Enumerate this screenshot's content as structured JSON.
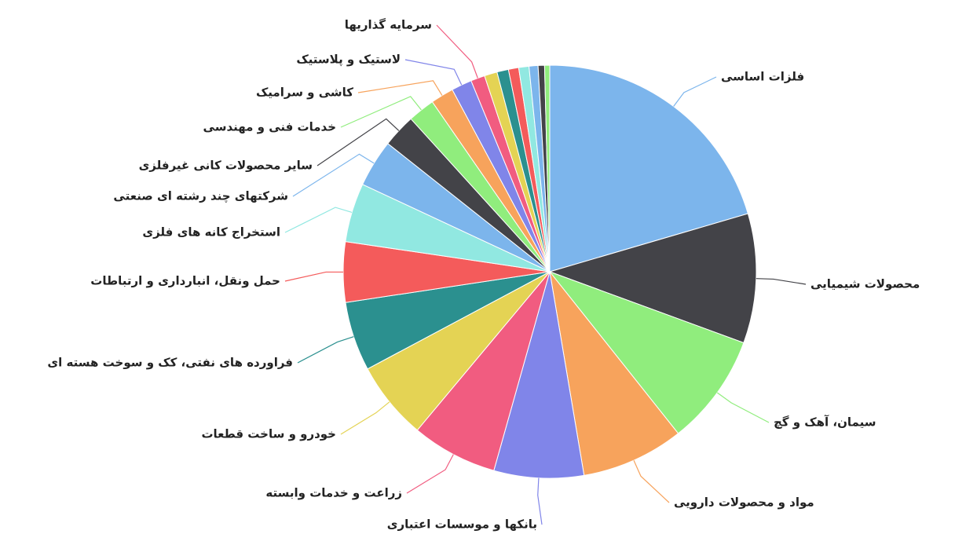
{
  "chart_data": {
    "type": "pie",
    "categories": [
      "فلزات اساسی",
      "محصولات شیمیایی",
      "سیمان، آهک و گچ",
      "مواد و محصولات دارویی",
      "بانکها و موسسات اعتباری",
      "زراعت و خدمات وابسته",
      "خودرو و ساخت قطعات",
      "فراورده های نفتی، کک و سوخت هسته ای",
      "حمل ونقل، انبارداری و ارتباطات",
      "استخراج کانه های فلزی",
      "شرکتهای چند رشته ای صنعتی",
      "سایر محصولات کانی غیرفلزی",
      "خدمات فنی و مهندسی",
      "کاشی و سرامیک",
      "لاستیک و پلاستیک",
      "سرمایه گذاریها",
      null,
      null,
      null,
      null,
      null,
      null,
      null
    ],
    "values": [
      20.4,
      10.1,
      8.7,
      8.0,
      7.0,
      6.7,
      6.1,
      5.4,
      4.7,
      4.6,
      3.7,
      2.6,
      2.1,
      1.8,
      1.6,
      1.1,
      1.0,
      0.9,
      0.8,
      0.8,
      0.7,
      0.5,
      0.4
    ],
    "colors": [
      "#7cb5ec",
      "#434348",
      "#90ed7d",
      "#f7a35c",
      "#8085e9",
      "#f15c80",
      "#e4d354",
      "#2b908f",
      "#f45b5b",
      "#91e8e1"
    ]
  }
}
